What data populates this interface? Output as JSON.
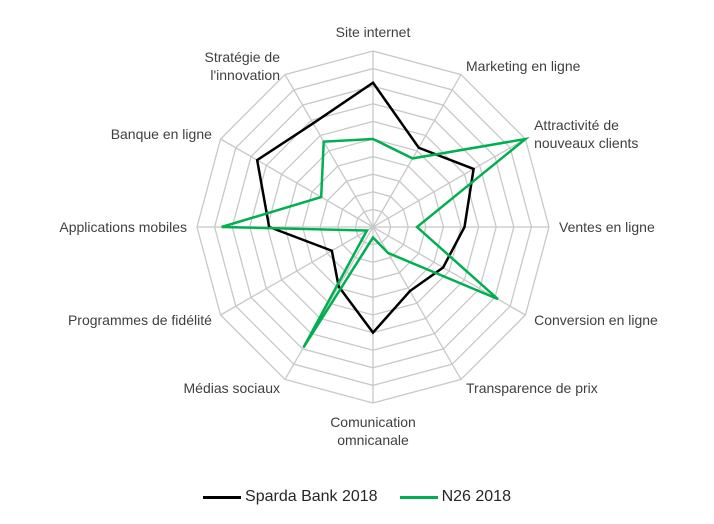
{
  "chart_data": {
    "type": "radar",
    "title": "",
    "axes": [
      "Site internet",
      "Marketing en ligne",
      "Attractivité de nouveaux clients",
      "Ventes en ligne",
      "Conversion en ligne",
      "Transparence de prix",
      "Comunication omnicanale",
      "Médias sociaux",
      "Programmes de fidélité",
      "Applications mobiles",
      "Banque en ligne",
      "Stratégie de l'innovation"
    ],
    "axis_label_lines": [
      [
        "Site internet"
      ],
      [
        "Marketing en ligne"
      ],
      [
        "Attractivité de",
        "nouveaux clients"
      ],
      [
        "Ventes en ligne"
      ],
      [
        "Conversion en ligne"
      ],
      [
        "Transparence de prix"
      ],
      [
        "Comunication",
        "omnicanale"
      ],
      [
        "Médias sociaux"
      ],
      [
        "Programmes de fidélité"
      ],
      [
        "Applications mobiles"
      ],
      [
        "Banque en ligne"
      ],
      [
        "Stratégie de",
        "l'innovation"
      ]
    ],
    "range": [
      0,
      10
    ],
    "rings": 10,
    "grid": true,
    "legend_position": "bottom",
    "series": [
      {
        "name": "Sparda Bank 2018",
        "color": "#000000",
        "values": [
          8.2,
          5.2,
          6.6,
          5.2,
          4.6,
          4.2,
          6.0,
          3.9,
          2.7,
          5.9,
          7.6,
          6.8
        ]
      },
      {
        "name": "N26 2018",
        "color": "#00b050",
        "values": [
          5.0,
          4.5,
          10.0,
          2.5,
          8.2,
          1.7,
          0.6,
          7.9,
          0.4,
          8.6,
          3.4,
          5.6
        ]
      }
    ]
  }
}
